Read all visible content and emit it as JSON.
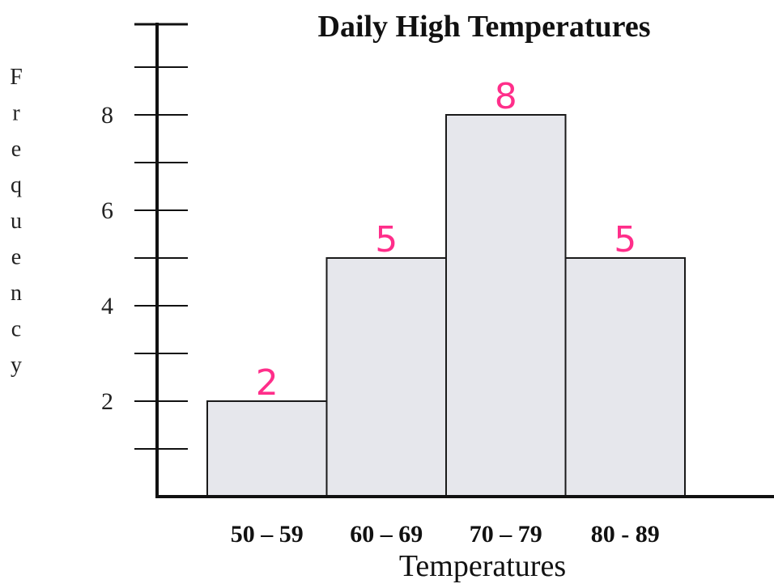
{
  "chart_data": {
    "type": "bar",
    "title": "Daily High Temperatures",
    "xlabel": "Temperatures",
    "ylabel": "Frequency",
    "categories": [
      "50 – 59",
      "60 – 69",
      "70 – 79",
      "80 - 89"
    ],
    "values": [
      2,
      5,
      8,
      5
    ],
    "data_labels": [
      "2",
      "5",
      "8",
      "5"
    ],
    "ylim": [
      0,
      10
    ],
    "y_tick_labels": [
      2,
      4,
      6,
      8
    ],
    "y_minor_ticks": [
      1,
      3,
      5,
      7,
      9
    ],
    "grid": false,
    "legend": "none",
    "colors": {
      "bar_fill": "#e6e7ec",
      "bar_stroke": "#1a1a1a",
      "axis": "#111111",
      "data_label": "#ff2e8a"
    }
  }
}
